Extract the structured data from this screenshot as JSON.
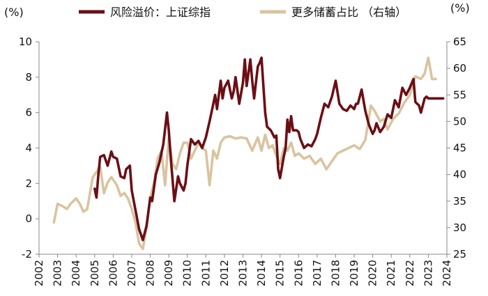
{
  "chart_data": {
    "type": "line",
    "title": "",
    "xlabel": "",
    "left_unit": "(%)",
    "right_unit": "(%)",
    "xlim": [
      2002,
      2024
    ],
    "ylim_left": [
      -2,
      10
    ],
    "ylim_right": [
      25,
      65
    ],
    "x_ticks": [
      "2002",
      "2003",
      "2004",
      "2005",
      "2006",
      "2007",
      "2008",
      "2009",
      "2010",
      "2011",
      "2012",
      "2013",
      "2014",
      "2015",
      "2016",
      "2017",
      "2018",
      "2019",
      "2020",
      "2021",
      "2022",
      "2023",
      "2024"
    ],
    "y_ticks_left": [
      "-2",
      "0",
      "2",
      "4",
      "6",
      "8",
      "10"
    ],
    "y_ticks_right": [
      "25",
      "30",
      "35",
      "40",
      "45",
      "50",
      "55",
      "60",
      "65"
    ],
    "grid": false,
    "legend_position": "top",
    "series": [
      {
        "name": "风险溢价：上证综指",
        "axis": "left",
        "color": "#6b0f14",
        "x": [
          2005.0,
          2005.1,
          2005.2,
          2005.3,
          2005.5,
          2005.7,
          2005.9,
          2006.0,
          2006.2,
          2006.4,
          2006.6,
          2006.7,
          2006.9,
          2007.0,
          2007.2,
          2007.4,
          2007.5,
          2007.6,
          2007.8,
          2008.0,
          2008.1,
          2008.3,
          2008.5,
          2008.7,
          2008.9,
          2009.0,
          2009.1,
          2009.3,
          2009.5,
          2009.6,
          2009.8,
          2009.9,
          2010.0,
          2010.2,
          2010.4,
          2010.6,
          2010.8,
          2011.0,
          2011.2,
          2011.4,
          2011.5,
          2011.6,
          2011.8,
          2011.9,
          2012.0,
          2012.2,
          2012.4,
          2012.5,
          2012.6,
          2012.8,
          2013.0,
          2013.1,
          2013.2,
          2013.4,
          2013.5,
          2013.6,
          2013.8,
          2013.9,
          2014.0,
          2014.2,
          2014.3,
          2014.5,
          2014.7,
          2014.8,
          2014.9,
          2015.0,
          2015.2,
          2015.3,
          2015.4,
          2015.5,
          2015.6,
          2015.7,
          2015.9,
          2016.0,
          2016.1,
          2016.3,
          2016.5,
          2016.7,
          2016.9,
          2017.0,
          2017.2,
          2017.4,
          2017.6,
          2017.8,
          2018.0,
          2018.2,
          2018.4,
          2018.6,
          2018.8,
          2019.0,
          2019.1,
          2019.2,
          2019.4,
          2019.6,
          2019.8,
          2020.0,
          2020.1,
          2020.2,
          2020.4,
          2020.6,
          2020.8,
          2021.0,
          2021.2,
          2021.4,
          2021.6,
          2021.8,
          2022.0,
          2022.2,
          2022.3,
          2022.5,
          2022.6,
          2022.8,
          2022.9,
          2023.0,
          2023.2,
          2023.4,
          2023.6,
          2023.8
        ],
        "values": [
          1.7,
          1.2,
          2.5,
          3.5,
          3.6,
          3.0,
          3.8,
          3.5,
          3.4,
          2.4,
          2.3,
          2.8,
          3.0,
          1.6,
          0.5,
          -0.6,
          -0.9,
          -1.2,
          -0.4,
          1.2,
          1.0,
          2.5,
          3.2,
          4.2,
          6.0,
          5.0,
          3.5,
          1.0,
          2.4,
          2.0,
          1.6,
          2.0,
          3.0,
          4.5,
          4.2,
          4.4,
          4.0,
          4.6,
          5.5,
          6.5,
          7.0,
          6.2,
          7.8,
          6.8,
          7.4,
          7.8,
          6.8,
          7.2,
          8.0,
          6.5,
          7.7,
          9.0,
          7.5,
          9.0,
          7.8,
          6.8,
          8.6,
          8.8,
          9.1,
          6.0,
          5.2,
          5.0,
          4.6,
          4.7,
          2.8,
          2.3,
          3.5,
          4.0,
          5.6,
          4.9,
          5.8,
          5.0,
          5.0,
          4.9,
          4.5,
          4.0,
          4.2,
          4.1,
          4.5,
          4.8,
          5.7,
          6.5,
          6.3,
          6.9,
          7.8,
          6.5,
          6.2,
          6.1,
          6.4,
          6.2,
          6.5,
          6.5,
          7.3,
          6.1,
          5.3,
          4.8,
          5.0,
          5.4,
          4.9,
          5.2,
          5.9,
          5.7,
          6.7,
          6.3,
          7.4,
          7.0,
          7.4,
          7.9,
          6.6,
          6.4,
          6.0,
          6.8,
          6.9,
          6.8,
          6.8,
          6.8,
          6.8,
          6.8
        ]
      },
      {
        "name": "更多储蓄占比 （右轴）",
        "axis": "right",
        "color": "#d9c4a0",
        "x": [
          2002.8,
          2003.0,
          2003.3,
          2003.5,
          2003.7,
          2004.0,
          2004.2,
          2004.4,
          2004.6,
          2004.9,
          2005.0,
          2005.3,
          2005.5,
          2005.7,
          2005.9,
          2006.2,
          2006.4,
          2006.6,
          2006.8,
          2007.0,
          2007.2,
          2007.4,
          2007.6,
          2007.8,
          2008.0,
          2008.2,
          2008.4,
          2008.6,
          2008.8,
          2009.0,
          2009.2,
          2009.4,
          2009.6,
          2009.8,
          2010.0,
          2010.2,
          2010.4,
          2010.6,
          2010.8,
          2011.0,
          2011.2,
          2011.4,
          2011.6,
          2011.8,
          2012.0,
          2012.3,
          2012.6,
          2012.9,
          2013.2,
          2013.5,
          2013.8,
          2014.0,
          2014.2,
          2014.4,
          2014.6,
          2014.8,
          2015.0,
          2015.2,
          2015.4,
          2015.6,
          2015.8,
          2016.0,
          2016.3,
          2016.6,
          2016.9,
          2017.2,
          2017.5,
          2017.8,
          2018.1,
          2018.4,
          2018.7,
          2019.0,
          2019.3,
          2019.6,
          2019.9,
          2020.1,
          2020.4,
          2020.6,
          2020.8,
          2021.1,
          2021.4,
          2021.7,
          2022.0,
          2022.3,
          2022.6,
          2022.8,
          2023.0,
          2023.2,
          2023.4
        ],
        "values": [
          31,
          34.5,
          34,
          33.5,
          34.5,
          35.5,
          34.5,
          33,
          33.5,
          39.5,
          40,
          41.5,
          36.5,
          38.5,
          39.5,
          38,
          36,
          36.5,
          35.5,
          33.5,
          31,
          27,
          26,
          30,
          35.5,
          38.5,
          43,
          44.5,
          38,
          47,
          42,
          41,
          44,
          46,
          46,
          43,
          44.5,
          46,
          45,
          44.5,
          38,
          44.5,
          43,
          46,
          47,
          47.2,
          46.8,
          47,
          46.8,
          44.5,
          47,
          44.5,
          47.5,
          45,
          45.5,
          43.5,
          42,
          45,
          44.5,
          46,
          43.5,
          44,
          43,
          43.5,
          42,
          43,
          41,
          42.5,
          44,
          44.5,
          45,
          45.5,
          44.8,
          46.5,
          53,
          52,
          50,
          50.5,
          48.5,
          50.5,
          51.5,
          53.5,
          55,
          58.5,
          58,
          59,
          62,
          58,
          58
        ]
      }
    ]
  }
}
